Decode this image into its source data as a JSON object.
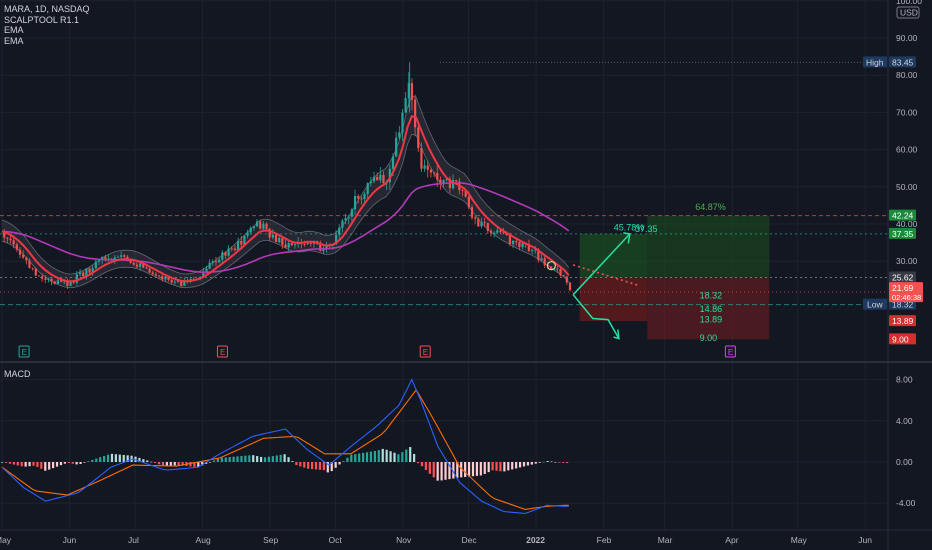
{
  "header": {
    "symbol_line": "MARA, 1D, NASDAQ",
    "indicator_1": "SCALPTOOL R1.1",
    "indicator_2": "EMA",
    "indicator_3": "EMA"
  },
  "macd_pane": {
    "label": "MACD"
  },
  "currency": {
    "label": "USD"
  },
  "colors": {
    "background": "#131722",
    "up": "#26a69a",
    "down": "#ef5350",
    "ema_fast": "#f23645",
    "ema_slow": "#b23ab6",
    "macd_line": "#2962ff",
    "signal_line": "#ff6d00",
    "profit_zone": "#1b5e20",
    "loss_zone": "#7f1d1d"
  },
  "chart_data": [
    {
      "type": "candlestick",
      "title": "MARA, 1D, NASDAQ",
      "ylim": [
        8,
        100
      ],
      "y_ticks": [
        "100.00",
        "90.00",
        "80.00",
        "70.00",
        "60.00",
        "50.00",
        "40.00",
        "30.00"
      ],
      "x_ticks": [
        "May",
        "Jun",
        "Jul",
        "Aug",
        "Sep",
        "Oct",
        "Nov",
        "Dec",
        "2022",
        "Feb",
        "Mar",
        "Apr",
        "May",
        "Jun"
      ],
      "x_tick_days": [
        0,
        31,
        61,
        92,
        123,
        153,
        184,
        214,
        245,
        276,
        304,
        335,
        365,
        396
      ],
      "close_path": [
        [
          0,
          38
        ],
        [
          8,
          33
        ],
        [
          15,
          27
        ],
        [
          22,
          25
        ],
        [
          30,
          24
        ],
        [
          38,
          27
        ],
        [
          45,
          30
        ],
        [
          52,
          31
        ],
        [
          60,
          30
        ],
        [
          68,
          27
        ],
        [
          75,
          25
        ],
        [
          82,
          24
        ],
        [
          90,
          26
        ],
        [
          98,
          30
        ],
        [
          105,
          33
        ],
        [
          112,
          37
        ],
        [
          118,
          40
        ],
        [
          125,
          36
        ],
        [
          132,
          34
        ],
        [
          140,
          36
        ],
        [
          148,
          33
        ],
        [
          153,
          36
        ],
        [
          158,
          42
        ],
        [
          163,
          47
        ],
        [
          170,
          51
        ],
        [
          176,
          52
        ],
        [
          180,
          60
        ],
        [
          183,
          66
        ],
        [
          186,
          78
        ],
        [
          188,
          75
        ],
        [
          190,
          66
        ],
        [
          192,
          56
        ],
        [
          196,
          53
        ],
        [
          202,
          51
        ],
        [
          208,
          50
        ],
        [
          212,
          48
        ],
        [
          216,
          42
        ],
        [
          220,
          40
        ],
        [
          226,
          38
        ],
        [
          232,
          36
        ],
        [
          238,
          34
        ],
        [
          243,
          33
        ],
        [
          248,
          30
        ],
        [
          253,
          28
        ],
        [
          258,
          25.62
        ],
        [
          261,
          21.69
        ]
      ],
      "markers": {
        "session_high": {
          "label": "High",
          "value": "83.45"
        },
        "session_low": {
          "label": "Low",
          "value": "18.32"
        },
        "last_price": {
          "value": "21.69",
          "countdown": "02:46:38"
        },
        "price_tags": [
          "42.24",
          "37.35",
          "25.62",
          "13.89",
          "9.00"
        ],
        "earnings_days": [
          6,
          97,
          190,
          330
        ]
      },
      "projection": {
        "up_target_pct": "45.78%",
        "up_target": "37.35",
        "max_target_pct": "64.87%",
        "max_target": "42.24",
        "entry_level": "25.62",
        "down_levels": [
          "18.32",
          "14.86",
          "13.89",
          "9.00"
        ]
      }
    },
    {
      "type": "line",
      "title": "MACD",
      "ylim": [
        -5.5,
        9.5
      ],
      "y_ticks": [
        "8.00",
        "4.00",
        "0.00",
        "-4.00"
      ],
      "series": [
        {
          "name": "MACD",
          "points": [
            [
              0,
              -0.5
            ],
            [
              10,
              -2.5
            ],
            [
              20,
              -3.8
            ],
            [
              35,
              -3
            ],
            [
              50,
              -0.5
            ],
            [
              60,
              0.3
            ],
            [
              75,
              -0.8
            ],
            [
              90,
              -0.5
            ],
            [
              100,
              0.8
            ],
            [
              115,
              2.5
            ],
            [
              130,
              3.2
            ],
            [
              140,
              1.2
            ],
            [
              150,
              -0.3
            ],
            [
              160,
              1.5
            ],
            [
              172,
              3.5
            ],
            [
              182,
              5.5
            ],
            [
              188,
              8
            ],
            [
              192,
              6
            ],
            [
              200,
              1.5
            ],
            [
              210,
              -2
            ],
            [
              220,
              -3.8
            ],
            [
              230,
              -4.8
            ],
            [
              240,
              -5
            ],
            [
              250,
              -4.2
            ],
            [
              258,
              -4.3
            ]
          ]
        },
        {
          "name": "Signal",
          "points": [
            [
              0,
              -0.5
            ],
            [
              15,
              -2.8
            ],
            [
              30,
              -3.2
            ],
            [
              45,
              -1.8
            ],
            [
              60,
              -0.3
            ],
            [
              80,
              -0.4
            ],
            [
              100,
              0.4
            ],
            [
              120,
              2.3
            ],
            [
              135,
              2.5
            ],
            [
              148,
              0.8
            ],
            [
              160,
              0.8
            ],
            [
              175,
              2.8
            ],
            [
              190,
              7
            ],
            [
              197,
              4.5
            ],
            [
              210,
              -0.5
            ],
            [
              225,
              -3.5
            ],
            [
              240,
              -4.6
            ],
            [
              250,
              -4.3
            ],
            [
              258,
              -4.2
            ]
          ]
        }
      ]
    }
  ]
}
